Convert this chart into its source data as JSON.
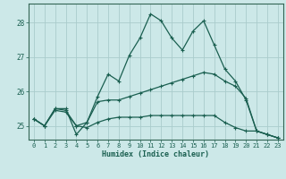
{
  "xlabel": "Humidex (Indice chaleur)",
  "background_color": "#cce8e8",
  "grid_color": "#aacccc",
  "line_color": "#1a5f50",
  "spine_color": "#336655",
  "xlim": [
    -0.5,
    23.5
  ],
  "ylim": [
    24.6,
    28.55
  ],
  "yticks": [
    25,
    26,
    27,
    28
  ],
  "xticks": [
    0,
    1,
    2,
    3,
    4,
    5,
    6,
    7,
    8,
    9,
    10,
    11,
    12,
    13,
    14,
    15,
    16,
    17,
    18,
    19,
    20,
    21,
    22,
    23
  ],
  "series": [
    [
      25.2,
      25.0,
      25.5,
      25.5,
      24.75,
      25.1,
      25.85,
      26.5,
      26.3,
      27.05,
      27.55,
      28.25,
      28.05,
      27.55,
      27.2,
      27.75,
      28.05,
      27.35,
      26.65,
      26.3,
      25.75,
      24.85,
      24.75,
      24.65
    ],
    [
      25.2,
      25.0,
      25.5,
      25.45,
      25.0,
      25.1,
      25.7,
      25.75,
      25.75,
      25.85,
      25.95,
      26.05,
      26.15,
      26.25,
      26.35,
      26.45,
      26.55,
      26.5,
      26.3,
      26.15,
      25.8,
      24.85,
      24.75,
      24.65
    ],
    [
      25.2,
      25.0,
      25.45,
      25.4,
      25.0,
      24.95,
      25.1,
      25.2,
      25.25,
      25.25,
      25.25,
      25.3,
      25.3,
      25.3,
      25.3,
      25.3,
      25.3,
      25.3,
      25.1,
      24.95,
      24.85,
      24.85,
      24.75,
      24.65
    ]
  ]
}
